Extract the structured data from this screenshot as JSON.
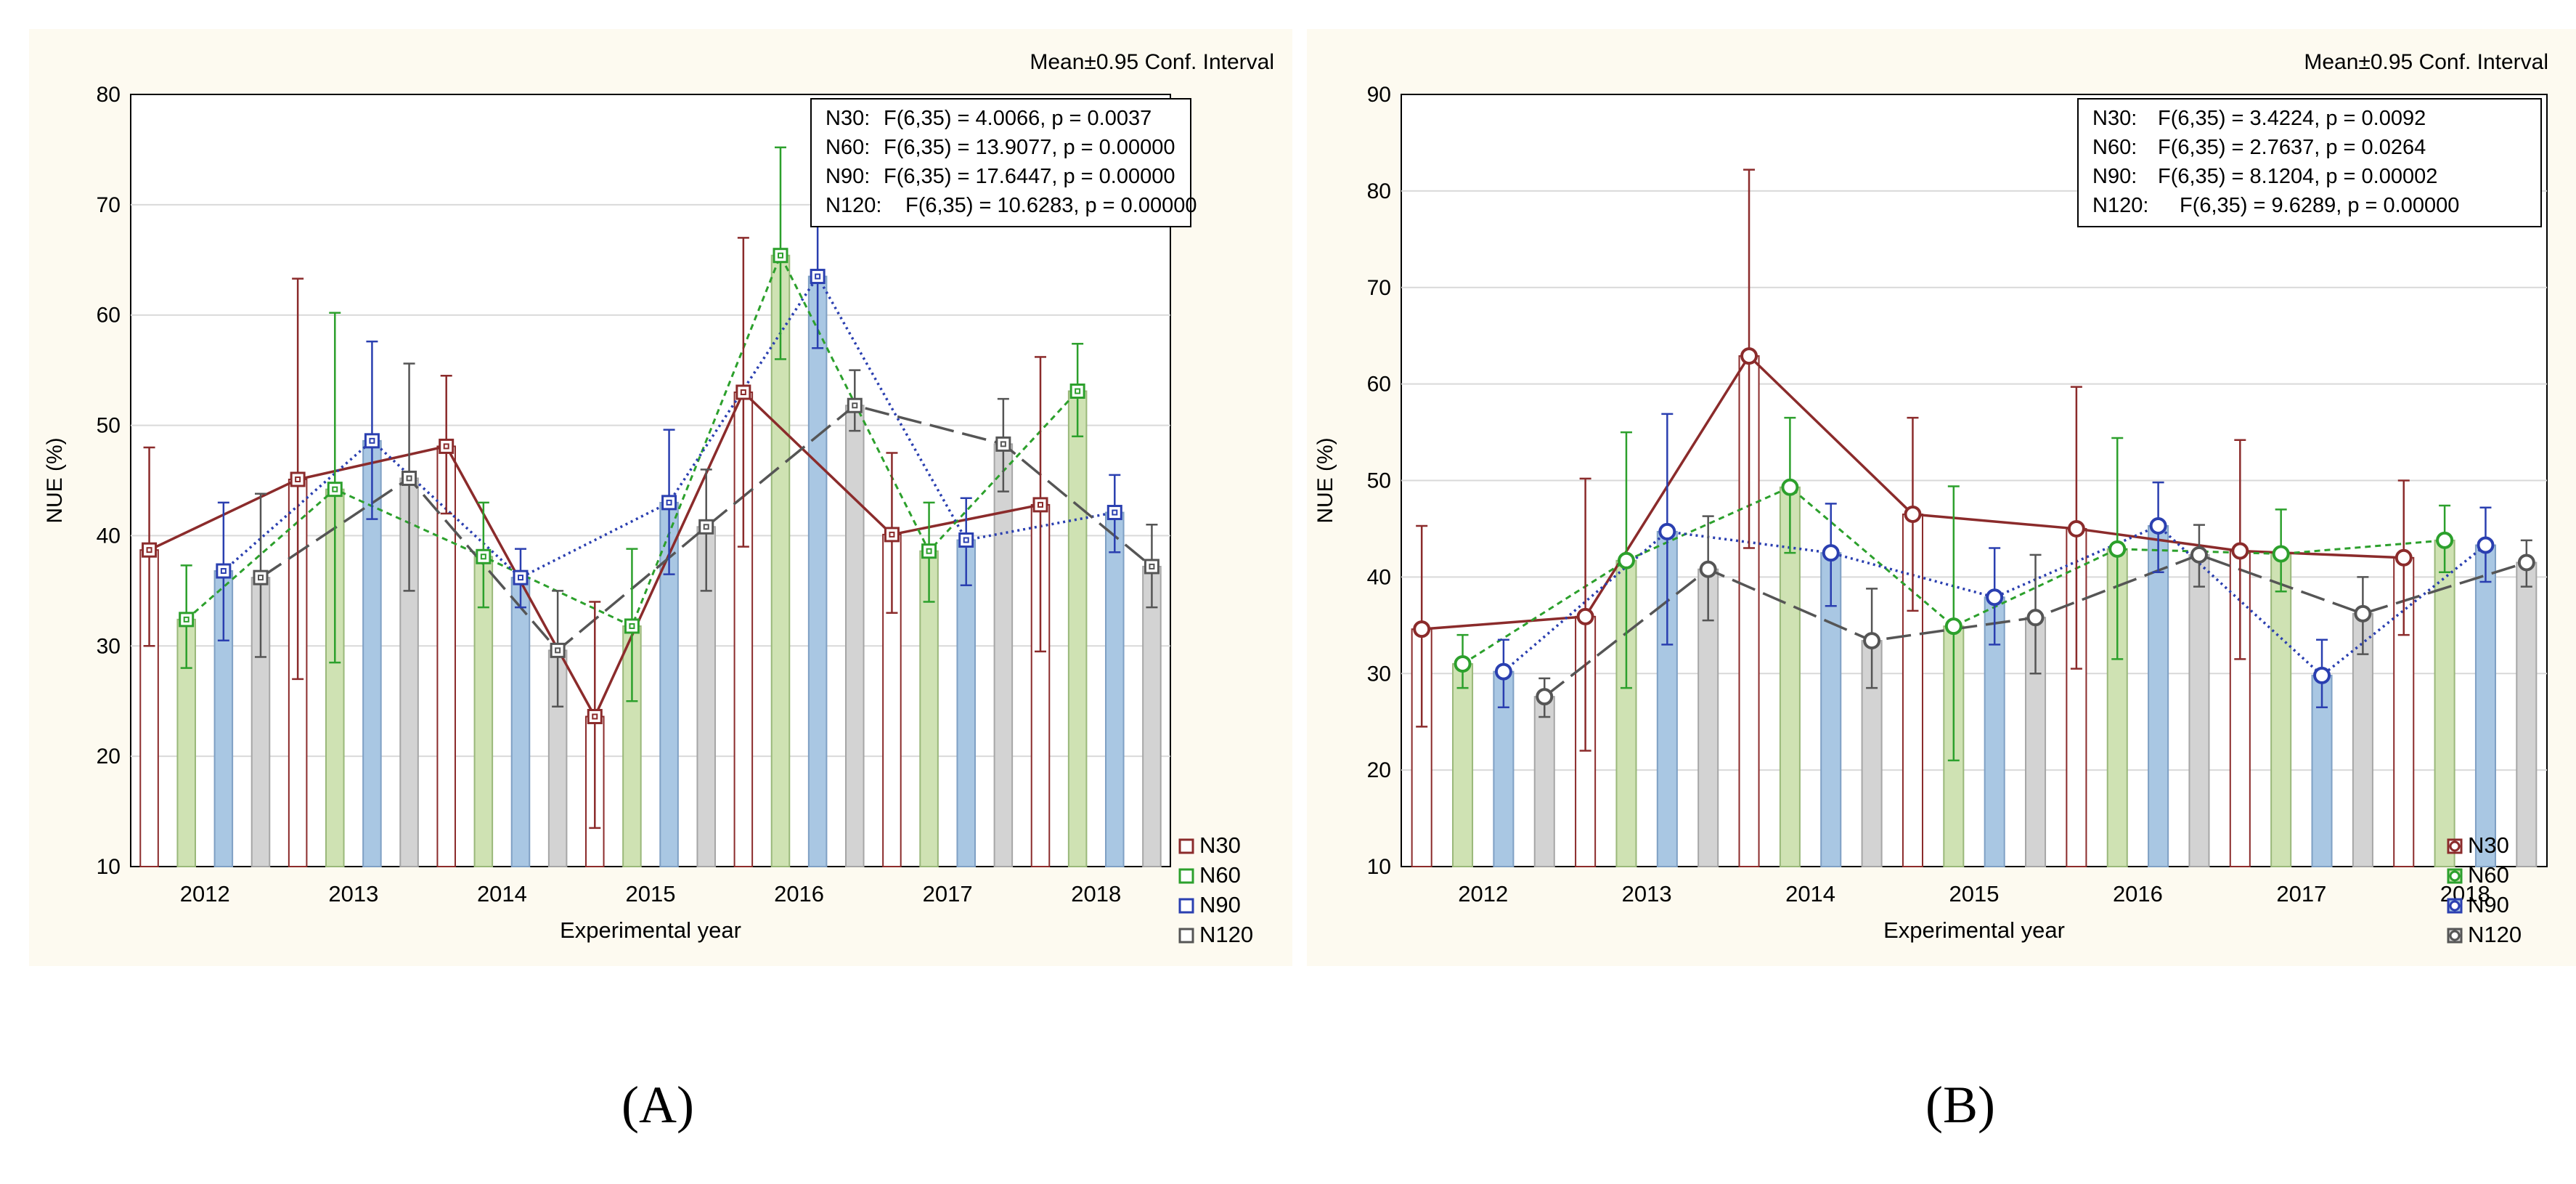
{
  "panel_labels": {
    "a": "(A)",
    "b": "(B)"
  },
  "colors": {
    "n30": "#8b2b2b",
    "n60": "#2ca02c",
    "n90": "#2a3fb0",
    "n120": "#555555",
    "bar_n60": "#cfe2b3",
    "bar_n90": "#a9c7e3",
    "bar_n120": "#d3d3d3",
    "panel_bg": "#fdfaf0",
    "grid": "#d9d9d9"
  },
  "chart_data": [
    {
      "id": "A",
      "type": "bar",
      "title": "Mean±0.95 Conf. Interval",
      "xlabel": "Experimental year",
      "ylabel": "NUE (%)",
      "ylim": [
        10,
        80
      ],
      "yticks": [
        "10",
        "20",
        "30",
        "40",
        "50",
        "60",
        "70",
        "80"
      ],
      "categories": [
        "2012",
        "2013",
        "2014",
        "2015",
        "2016",
        "2017",
        "2018"
      ],
      "stats": [
        {
          "name": "N30:",
          "text": "F(6,35) = 4.0066, p = 0.0037"
        },
        {
          "name": "N60:",
          "text": "F(6,35) = 13.9077, p = 0.00000"
        },
        {
          "name": "N90:",
          "text": "F(6,35) = 17.6447, p = 0.00000"
        },
        {
          "name": "N120:",
          "text": "F(6,35) = 10.6283, p = 0.00000"
        }
      ],
      "series": [
        {
          "name": "N30",
          "values": [
            38.7,
            45.1,
            48.1,
            23.6,
            53.0,
            40.1,
            42.8
          ],
          "low": [
            30.0,
            27.0,
            42.0,
            13.5,
            39.0,
            33.0,
            29.5
          ],
          "high": [
            48.0,
            63.3,
            54.5,
            34.0,
            67.0,
            47.5,
            56.2
          ]
        },
        {
          "name": "N60",
          "values": [
            32.4,
            44.2,
            38.1,
            31.8,
            65.4,
            38.6,
            53.1
          ],
          "low": [
            28.0,
            28.5,
            33.5,
            25.0,
            56.0,
            34.0,
            49.0
          ],
          "high": [
            37.3,
            60.2,
            43.0,
            38.8,
            75.2,
            43.0,
            57.4
          ]
        },
        {
          "name": "N90",
          "values": [
            36.8,
            48.6,
            36.2,
            43.0,
            63.5,
            39.6,
            42.1
          ],
          "low": [
            30.5,
            41.5,
            33.5,
            36.5,
            57.0,
            35.5,
            38.5
          ],
          "high": [
            43.0,
            57.6,
            38.8,
            49.6,
            70.0,
            43.4,
            45.5
          ]
        },
        {
          "name": "N120",
          "values": [
            36.2,
            45.2,
            29.6,
            40.8,
            51.8,
            48.3,
            37.2
          ],
          "low": [
            29.0,
            35.0,
            24.5,
            35.0,
            49.5,
            44.0,
            33.5
          ],
          "high": [
            43.8,
            55.6,
            35.0,
            46.0,
            55.0,
            52.4,
            41.0
          ]
        }
      ],
      "legend": [
        "N30",
        "N60",
        "N90",
        "N120"
      ],
      "legend_position": "bottom-right"
    },
    {
      "id": "B",
      "type": "bar",
      "title": "Mean±0.95 Conf. Interval",
      "xlabel": "Experimental year",
      "ylabel": "NUE (%)",
      "ylim": [
        10,
        90
      ],
      "yticks": [
        "10",
        "20",
        "30",
        "40",
        "50",
        "60",
        "70",
        "80",
        "90"
      ],
      "categories": [
        "2012",
        "2013",
        "2014",
        "2015",
        "2016",
        "2017",
        "2018"
      ],
      "stats": [
        {
          "name": "N30:",
          "text": "F(6,35) = 3.4224, p = 0.0092"
        },
        {
          "name": "N60:",
          "text": "F(6,35) = 2.7637, p = 0.0264"
        },
        {
          "name": "N90:",
          "text": "F(6,35) = 8.1204, p = 0.00002"
        },
        {
          "name": "N120:",
          "text": "F(6,35) = 9.6289, p = 0.00000"
        }
      ],
      "series": [
        {
          "name": "N30",
          "values": [
            34.6,
            35.9,
            62.9,
            46.5,
            45.0,
            42.7,
            42.0
          ],
          "low": [
            24.5,
            22.0,
            43.0,
            36.5,
            30.5,
            31.5,
            34.0
          ],
          "high": [
            45.3,
            50.2,
            82.2,
            56.5,
            59.7,
            54.2,
            50.0
          ]
        },
        {
          "name": "N60",
          "values": [
            31.0,
            41.7,
            49.3,
            34.9,
            42.9,
            42.4,
            43.8
          ],
          "low": [
            28.5,
            28.5,
            42.5,
            21.0,
            31.5,
            38.5,
            40.5
          ],
          "high": [
            34.0,
            55.0,
            56.5,
            49.4,
            54.4,
            47.0,
            47.4
          ]
        },
        {
          "name": "N90",
          "values": [
            30.2,
            44.7,
            42.5,
            37.9,
            45.3,
            29.8,
            43.3
          ],
          "low": [
            26.5,
            33.0,
            37.0,
            33.0,
            40.5,
            26.5,
            39.5
          ],
          "high": [
            33.5,
            56.9,
            47.6,
            43.0,
            49.8,
            33.5,
            47.2
          ]
        },
        {
          "name": "N120",
          "values": [
            27.6,
            40.8,
            33.4,
            35.8,
            42.3,
            36.2,
            41.5
          ],
          "low": [
            25.5,
            35.5,
            28.5,
            30.0,
            39.0,
            32.0,
            39.0
          ],
          "high": [
            29.5,
            46.3,
            38.8,
            42.3,
            45.4,
            40.0,
            43.8
          ]
        }
      ],
      "legend": [
        "N30",
        "N60",
        "N90",
        "N120"
      ],
      "legend_position": "bottom-right"
    }
  ]
}
